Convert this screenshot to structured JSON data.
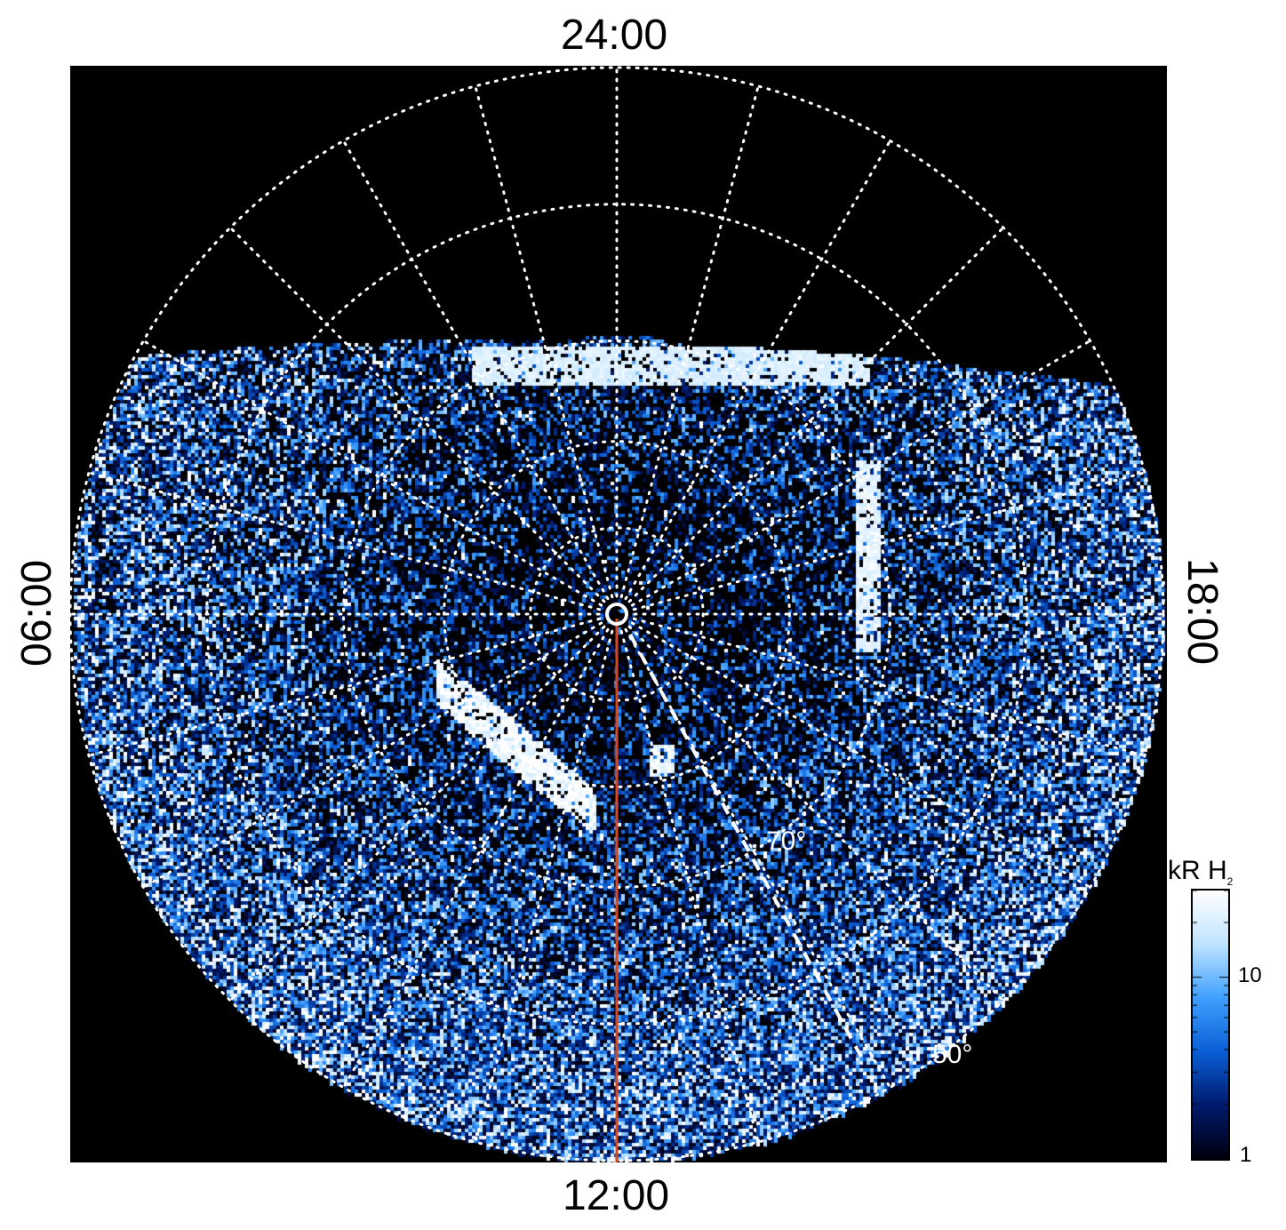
{
  "labels": {
    "top": "24:00",
    "bottom": "12:00",
    "left": "06:00",
    "right": "18:00"
  },
  "latitude_labels": {
    "inner": "70°",
    "outer": "50°"
  },
  "colorbar": {
    "title_main": "kR H",
    "title_sub": "2",
    "ticks": [
      "10",
      "1"
    ],
    "min_value": 1,
    "max_value": 30,
    "scale": "log",
    "colors": [
      "#000010",
      "#001a6e",
      "#0a5fd6",
      "#3fa0ff",
      "#bfe3ff",
      "#ffffff"
    ]
  },
  "theme": {
    "background": "#000000",
    "grid": "#ffffff",
    "meridian_line": "#d9481c"
  }
}
